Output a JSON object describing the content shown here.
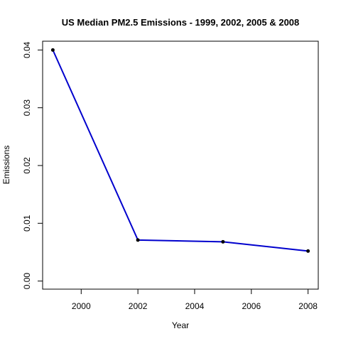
{
  "chart_data": {
    "type": "line",
    "title": "US Median PM2.5 Emissions - 1999, 2002, 2005 & 2008",
    "xlabel": "Year",
    "ylabel": "Emissions",
    "x": [
      1999,
      2002,
      2005,
      2008
    ],
    "series": [
      {
        "values": [
          0.04,
          0.0071,
          0.0068,
          0.0052
        ]
      }
    ],
    "xlim": [
      1998.64,
      2008.36
    ],
    "ylim": [
      -0.0014,
      0.04152
    ],
    "xticks": [
      2000,
      2002,
      2004,
      2006,
      2008
    ],
    "xtick_labels": [
      "2000",
      "2002",
      "2004",
      "2006",
      "2008"
    ],
    "yticks": [
      0,
      0.01,
      0.02,
      0.03,
      0.04
    ],
    "ytick_labels": [
      "0.00",
      "0.01",
      "0.02",
      "0.03",
      "0.04"
    ],
    "line_color": "#0000cd",
    "point_color": "#000000",
    "grid": false,
    "legend": "none"
  }
}
